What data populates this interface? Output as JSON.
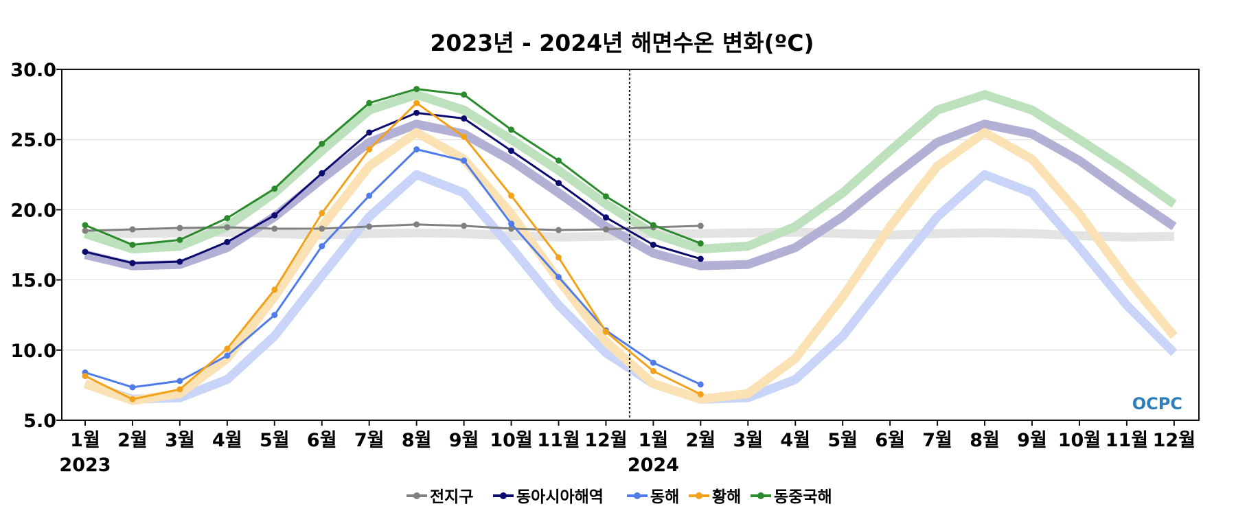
{
  "chart_data": {
    "type": "line",
    "title": "2023년 - 2024년 해면수온 변화(ºC)",
    "xlabel": "",
    "ylabel": "",
    "ylim": [
      5.0,
      30.0
    ],
    "yticks": [
      "5.0",
      "10.0",
      "15.0",
      "20.0",
      "25.0",
      "30.0"
    ],
    "categories": [
      "1월",
      "2월",
      "3월",
      "4월",
      "5월",
      "6월",
      "7월",
      "8월",
      "9월",
      "10월",
      "11월",
      "12월",
      "1월",
      "2월",
      "3월",
      "4월",
      "5월",
      "6월",
      "7월",
      "8월",
      "9월",
      "10월",
      "11월",
      "12월"
    ],
    "year_labels": [
      "2023",
      "2024"
    ],
    "year_divider_after_index": 11,
    "grid": true,
    "legend_position": "bottom",
    "logo_text": "OCPC",
    "series": [
      {
        "name": "전지구",
        "color": "#808080",
        "values": [
          18.5,
          18.6,
          18.7,
          18.75,
          18.65,
          18.65,
          18.8,
          18.95,
          18.85,
          18.65,
          18.55,
          18.6,
          18.75,
          18.85,
          null,
          null,
          null,
          null,
          null,
          null,
          null,
          null,
          null,
          null
        ],
        "climatology": [
          18.3,
          18.3,
          18.35,
          18.4,
          18.3,
          18.2,
          18.3,
          18.35,
          18.3,
          18.15,
          18.05,
          18.1,
          18.3,
          18.3,
          18.35,
          18.4,
          18.3,
          18.2,
          18.3,
          18.35,
          18.3,
          18.15,
          18.05,
          18.1
        ],
        "climatology_color": "#e3e3e3"
      },
      {
        "name": "동아시아해역",
        "color": "#0b0b6e",
        "values": [
          17.0,
          16.2,
          16.3,
          17.7,
          19.6,
          22.6,
          25.5,
          26.9,
          26.5,
          24.2,
          21.9,
          19.45,
          17.5,
          16.5,
          null,
          null,
          null,
          null,
          null,
          null,
          null,
          null,
          null,
          null
        ],
        "climatology": [
          16.8,
          16.0,
          16.1,
          17.3,
          19.5,
          22.2,
          24.8,
          26.1,
          25.4,
          23.5,
          21.2,
          18.8,
          16.9,
          16.0,
          16.1,
          17.3,
          19.5,
          22.2,
          24.8,
          26.1,
          25.4,
          23.5,
          21.1,
          18.8
        ],
        "climatology_color": "#b3b0d6"
      },
      {
        "name": "동해",
        "color": "#4f7ce8",
        "values": [
          8.4,
          7.35,
          7.8,
          9.6,
          12.5,
          17.4,
          21.0,
          24.3,
          23.5,
          19.0,
          15.2,
          11.4,
          9.1,
          7.55,
          null,
          null,
          null,
          null,
          null,
          null,
          null,
          null,
          null,
          null
        ],
        "climatology": [
          7.6,
          6.5,
          6.6,
          7.9,
          11.0,
          15.3,
          19.5,
          22.5,
          21.2,
          17.3,
          13.2,
          9.8,
          7.6,
          6.5,
          6.6,
          7.9,
          11.0,
          15.3,
          19.5,
          22.5,
          21.2,
          17.3,
          13.2,
          9.8
        ],
        "climatology_color": "#c8d4f8"
      },
      {
        "name": "황해",
        "color": "#f2a11a",
        "values": [
          8.15,
          6.5,
          7.2,
          10.1,
          14.3,
          19.75,
          24.3,
          27.6,
          25.2,
          21.0,
          16.6,
          11.3,
          8.5,
          6.85,
          null,
          null,
          null,
          null,
          null,
          null,
          null,
          null,
          null,
          null
        ],
        "climatology": [
          7.6,
          6.4,
          6.9,
          9.4,
          13.8,
          18.8,
          23.1,
          25.5,
          23.6,
          19.7,
          15.0,
          10.6,
          7.6,
          6.5,
          6.9,
          9.4,
          13.8,
          18.8,
          23.1,
          25.5,
          23.6,
          19.7,
          15.1,
          11.0
        ],
        "climatology_color": "#fbe2b4"
      },
      {
        "name": "동중국해",
        "color": "#2b8a2b",
        "values": [
          18.9,
          17.5,
          17.85,
          19.4,
          21.5,
          24.7,
          27.6,
          28.6,
          28.2,
          25.7,
          23.5,
          20.95,
          18.9,
          17.6,
          null,
          null,
          null,
          null,
          null,
          null,
          null,
          null,
          null,
          null
        ],
        "climatology": [
          18.3,
          17.2,
          17.4,
          18.8,
          21.2,
          24.2,
          27.1,
          28.2,
          27.1,
          25.0,
          22.8,
          20.4,
          18.3,
          17.2,
          17.4,
          18.8,
          21.2,
          24.2,
          27.1,
          28.2,
          27.1,
          25.0,
          22.8,
          20.4
        ],
        "climatology_color": "#bde0bd"
      }
    ]
  }
}
